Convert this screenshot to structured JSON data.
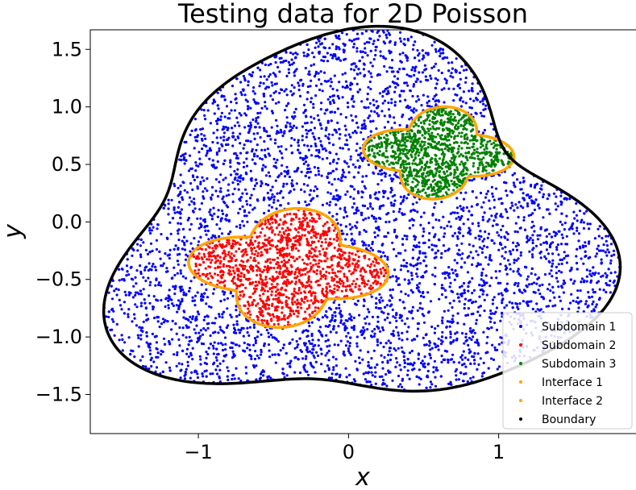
{
  "chart_data": {
    "type": "scatter",
    "title": "Testing data for 2D Poisson",
    "xlabel": "x",
    "ylabel": "y",
    "xlim": [
      -1.72,
      1.92
    ],
    "ylim": [
      -1.84,
      1.67
    ],
    "xticks": [
      -1,
      0,
      1
    ],
    "xtick_labels": [
      "−1",
      "0",
      "1"
    ],
    "yticks": [
      1.5,
      1.0,
      0.5,
      0.0,
      -0.5,
      -1.0,
      -1.5
    ],
    "ytick_labels": [
      "1.5",
      "1.0",
      "0.5",
      "0.0",
      "−0.5",
      "−1.0",
      "−1.5"
    ],
    "grid": false,
    "legend_position": "lower-right",
    "series": [
      {
        "name": "Subdomain 1",
        "kind": "points",
        "color": "#0000ff",
        "region": "outer blob minus subdomains 2 and 3",
        "outer_boundary": {
          "center": [
            0.05,
            -0.08
          ],
          "r0": 1.55,
          "a1": 0.16,
          "k1": 3,
          "p1": 1.4,
          "a2": 0.06,
          "k2": 5,
          "p2": 0.3
        }
      },
      {
        "name": "Subdomain 2",
        "kind": "points",
        "color": "#ff0000",
        "region": "butterfly shape",
        "shape": {
          "center": [
            -0.4,
            -0.4
          ],
          "r0": 0.32,
          "a": 0.19,
          "k": 4,
          "phase": 0.3,
          "sx": 1.35,
          "sy": 1.05
        }
      },
      {
        "name": "Subdomain 3",
        "kind": "points",
        "color": "#008000",
        "region": "butterfly shape",
        "shape": {
          "center": [
            0.6,
            0.6
          ],
          "r0": 0.26,
          "a": 0.16,
          "k": 4,
          "phase": 0.25,
          "sx": 1.25,
          "sy": 1.0
        }
      },
      {
        "name": "Interface 1",
        "kind": "curve",
        "color": "#ffa500",
        "follows": "Subdomain 2"
      },
      {
        "name": "Interface 2",
        "kind": "curve",
        "color": "#ffa500",
        "follows": "Subdomain 3"
      },
      {
        "name": "Boundary",
        "kind": "curve",
        "color": "#000000",
        "follows": "Subdomain 1"
      }
    ]
  }
}
